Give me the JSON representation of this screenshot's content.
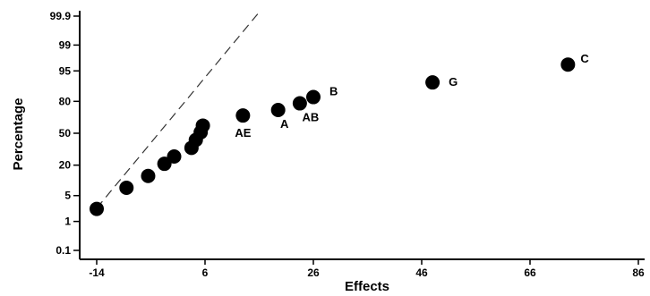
{
  "chart_data": {
    "type": "scatter",
    "title": "",
    "xlabel": "Effects",
    "ylabel": "Percentage",
    "xlim": [
      -16,
      88
    ],
    "x_ticks": [
      -14,
      6,
      26,
      46,
      66,
      86
    ],
    "y_scale": "normal-probability",
    "y_ticks": [
      {
        "value": 0.1,
        "label": "0.1"
      },
      {
        "value": 1,
        "label": "1"
      },
      {
        "value": 5,
        "label": "5"
      },
      {
        "value": 20,
        "label": "20"
      },
      {
        "value": 50,
        "label": "50"
      },
      {
        "value": 80,
        "label": "80"
      },
      {
        "value": 95,
        "label": "95"
      },
      {
        "value": 99,
        "label": "99"
      },
      {
        "value": 99.9,
        "label": "99.9"
      }
    ],
    "grid": false,
    "reference_line": {
      "style": "dashed",
      "from": {
        "x": -14,
        "y": 2.4
      },
      "to": {
        "x": 16,
        "y": 99.93
      }
    },
    "points": [
      {
        "x": -14,
        "y": 2.3,
        "label": ""
      },
      {
        "x": -8.5,
        "y": 7.5,
        "label": ""
      },
      {
        "x": -4.5,
        "y": 13,
        "label": ""
      },
      {
        "x": -1.5,
        "y": 21,
        "label": ""
      },
      {
        "x": 0.3,
        "y": 27,
        "label": ""
      },
      {
        "x": 3.5,
        "y": 35,
        "label": ""
      },
      {
        "x": 4.3,
        "y": 43,
        "label": ""
      },
      {
        "x": 5.2,
        "y": 51,
        "label": ""
      },
      {
        "x": 5.6,
        "y": 58,
        "label": ""
      },
      {
        "x": 13,
        "y": 68,
        "label": "AE"
      },
      {
        "x": 19.5,
        "y": 73,
        "label": "A"
      },
      {
        "x": 23.5,
        "y": 78.5,
        "label": "AB"
      },
      {
        "x": 26,
        "y": 83,
        "label": "B"
      },
      {
        "x": 48,
        "y": 91,
        "label": "G"
      },
      {
        "x": 73,
        "y": 96.5,
        "label": "C"
      }
    ]
  }
}
